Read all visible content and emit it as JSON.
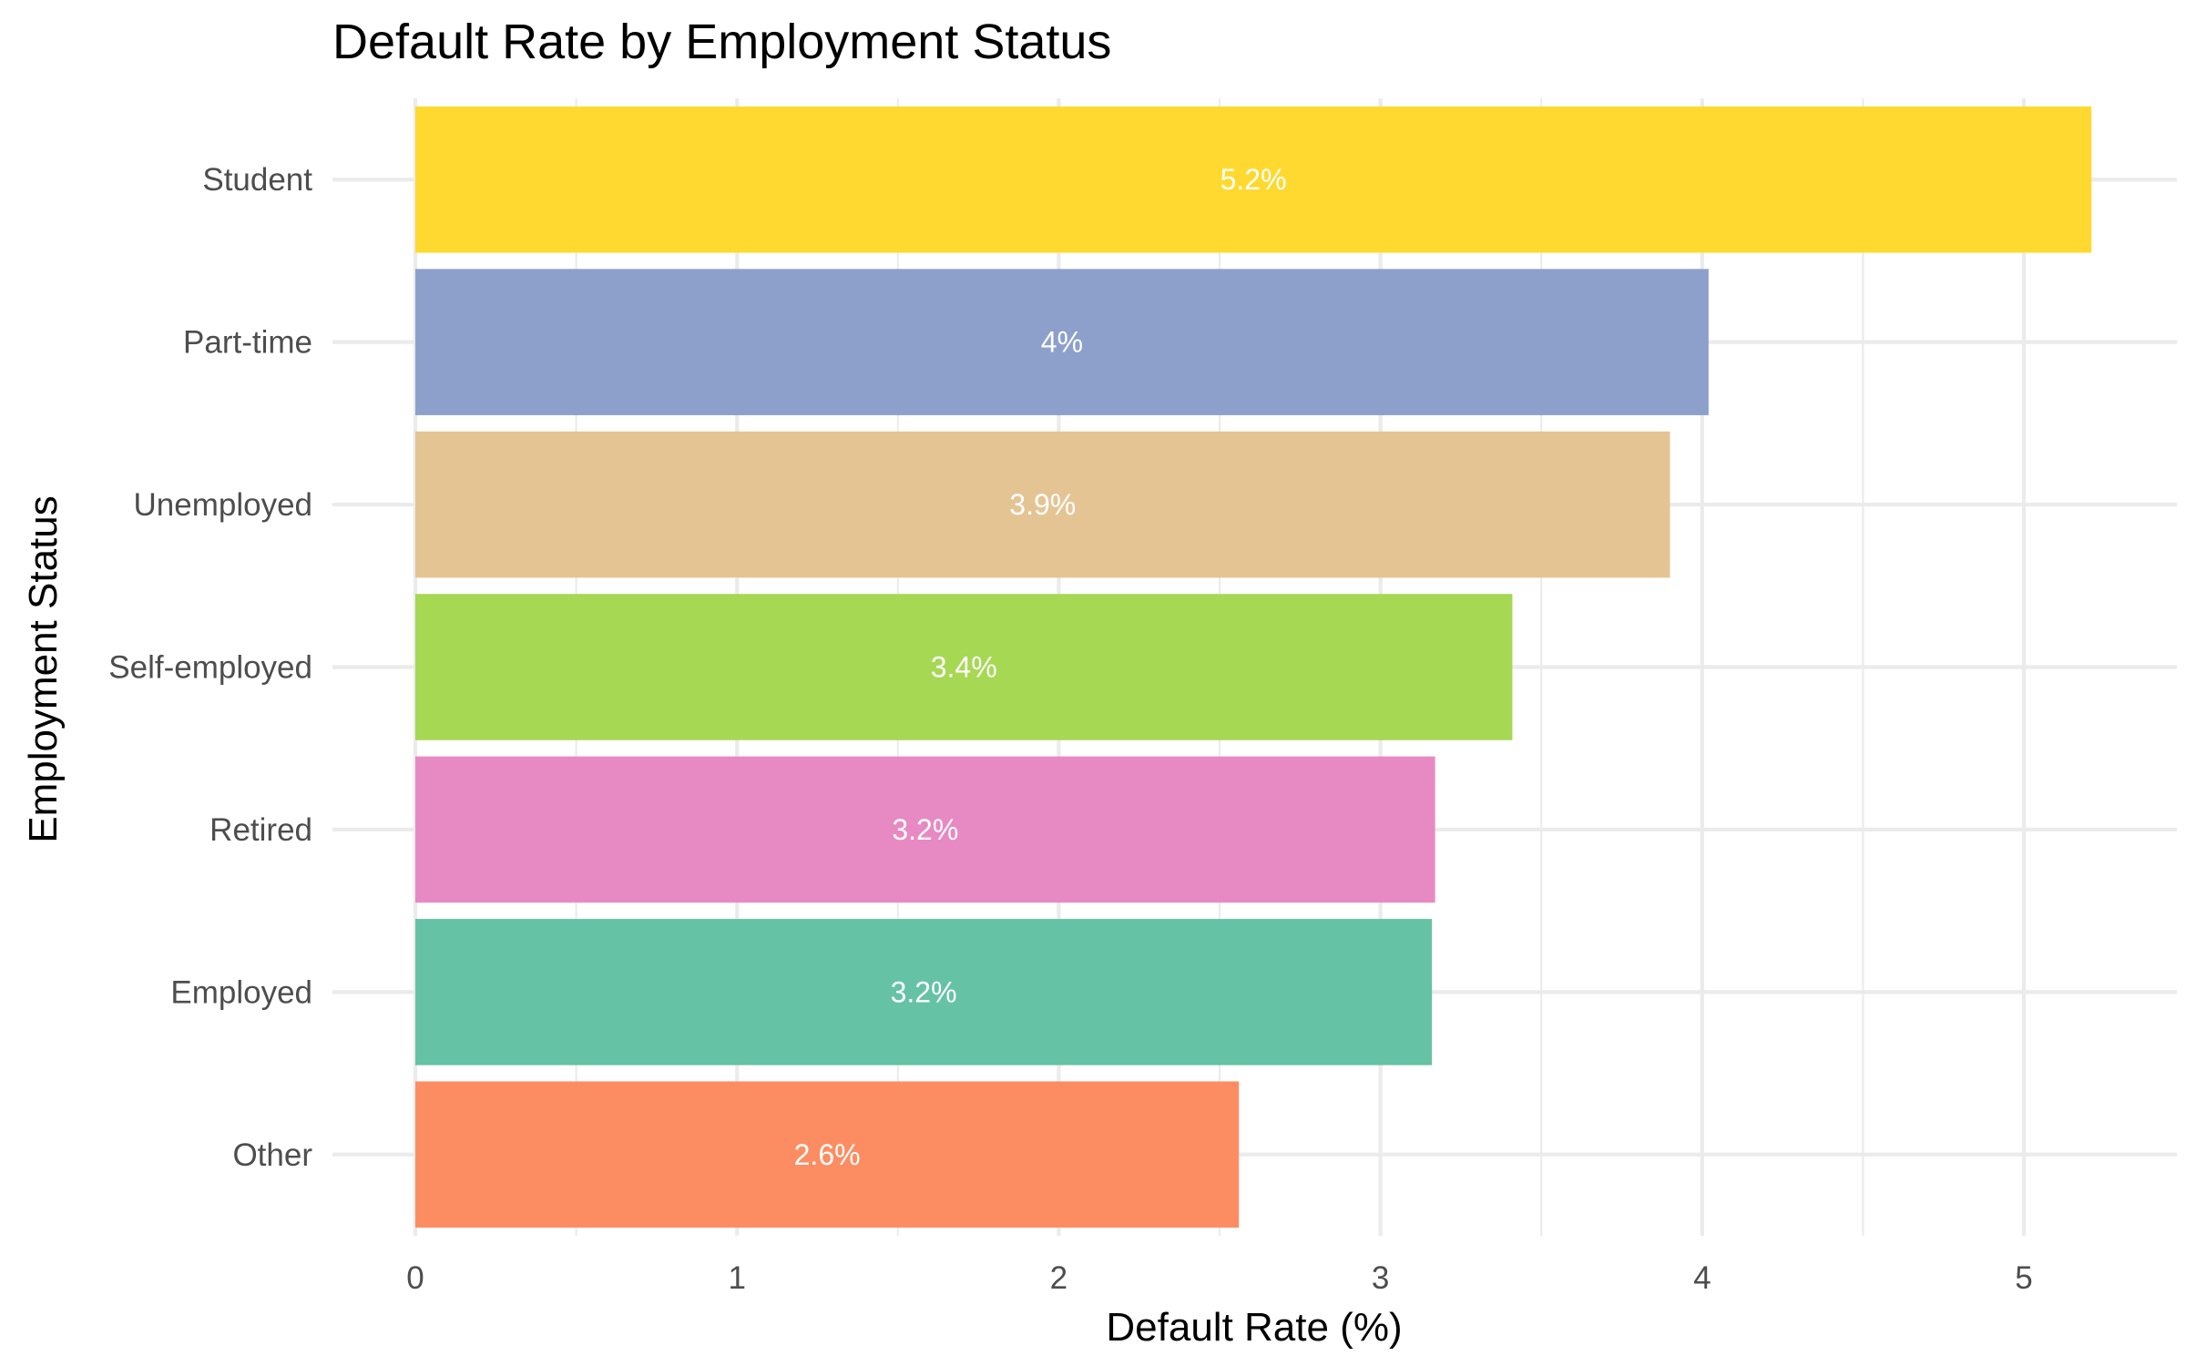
{
  "chart_data": {
    "type": "bar",
    "orientation": "horizontal",
    "title": "Default Rate by Employment Status",
    "xlabel": "Default Rate (%)",
    "ylabel": "Employment Status",
    "xlim": [
      0,
      5.4
    ],
    "x_ticks": [
      0,
      1,
      2,
      3,
      4,
      5
    ],
    "grid": true,
    "legend": "none",
    "categories": [
      "Student",
      "Part-time",
      "Unemployed",
      "Self-employed",
      "Retired",
      "Employed",
      "Other"
    ],
    "values": [
      5.21,
      4.02,
      3.9,
      3.41,
      3.17,
      3.16,
      2.56
    ],
    "labels": [
      "5.2%",
      "4%",
      "3.9%",
      "3.4%",
      "3.2%",
      "3.2%",
      "2.6%"
    ],
    "colors": [
      "#FFD92F",
      "#8DA0CB",
      "#E5C494",
      "#A6D854",
      "#E78AC3",
      "#66C2A5",
      "#FC8D62"
    ]
  }
}
